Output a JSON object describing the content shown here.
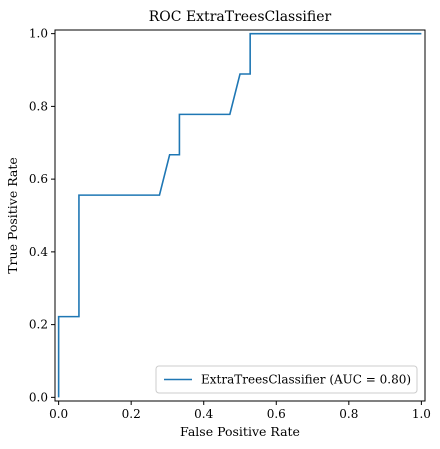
{
  "chart_data": {
    "type": "line",
    "title": "ROC ExtraTreesClassifier",
    "xlabel": "False Positive Rate",
    "ylabel": "True Positive Rate",
    "xlim": [
      -0.01,
      1.01
    ],
    "ylim": [
      -0.01,
      1.01
    ],
    "xticks": [
      0.0,
      0.2,
      0.4,
      0.6,
      0.8,
      1.0
    ],
    "xtick_labels": [
      "0.0",
      "0.2",
      "0.4",
      "0.6",
      "0.8",
      "1.0"
    ],
    "yticks": [
      0.0,
      0.2,
      0.4,
      0.6,
      0.8,
      1.0
    ],
    "ytick_labels": [
      "0.0",
      "0.2",
      "0.4",
      "0.6",
      "0.8",
      "1.0"
    ],
    "grid": false,
    "legend_position": "bottom-right",
    "series": [
      {
        "name": "ExtraTreesClassifier (AUC = 0.80)",
        "color": "#1f77b4",
        "x": [
          0.0,
          0.0,
          0.056,
          0.056,
          0.278,
          0.306,
          0.333,
          0.333,
          0.472,
          0.5,
          0.528,
          0.528,
          1.0
        ],
        "y": [
          0.0,
          0.222,
          0.222,
          0.556,
          0.556,
          0.667,
          0.667,
          0.778,
          0.778,
          0.889,
          0.889,
          1.0,
          1.0
        ]
      }
    ]
  }
}
